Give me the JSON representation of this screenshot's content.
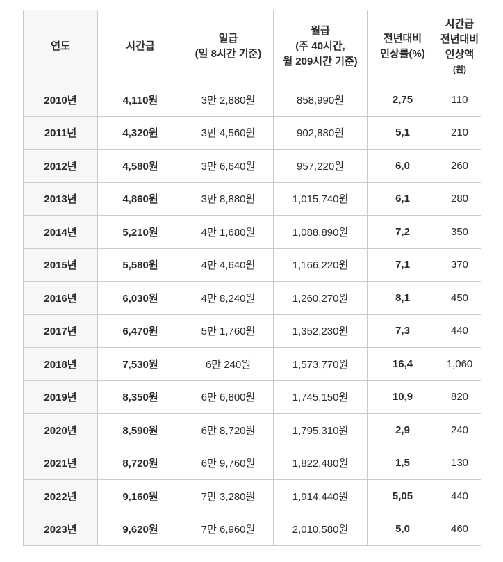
{
  "colors": {
    "page_background": "#ffffff",
    "table_border": "#cbcbcb",
    "first_column_background": "#f7f7f7",
    "bold_text": "#2b2b2b",
    "regular_text": "#555555"
  },
  "table": {
    "header_lines": [
      [
        "연도"
      ],
      [
        "시간급"
      ],
      [
        "일급",
        "(일 8시간 기준)"
      ],
      [
        "월급",
        "(주 40시간,",
        "월 209시간 기준)"
      ],
      [
        "전년대비",
        "인상률(%)"
      ],
      [
        "시간급",
        "전년대비",
        "인상액",
        "(원)"
      ]
    ]
  },
  "chart_data": {
    "type": "table",
    "columns": [
      "연도",
      "시간급",
      "일급 (일 8시간 기준)",
      "월급 (주 40시간, 월 209시간 기준)",
      "전년대비 인상률(%)",
      "시간급 전년대비 인상액 (원)"
    ],
    "rows": [
      [
        "2010년",
        "4,110원",
        "3만 2,880원",
        "858,990원",
        "2,75",
        "110"
      ],
      [
        "2011년",
        "4,320원",
        "3만 4,560원",
        "902,880원",
        "5,1",
        "210"
      ],
      [
        "2012년",
        "4,580원",
        "3만 6,640원",
        "957,220원",
        "6,0",
        "260"
      ],
      [
        "2013년",
        "4,860원",
        "3만 8,880원",
        "1,015,740원",
        "6,1",
        "280"
      ],
      [
        "2014년",
        "5,210원",
        "4만 1,680원",
        "1,088,890원",
        "7,2",
        "350"
      ],
      [
        "2015년",
        "5,580원",
        "4만 4,640원",
        "1,166,220원",
        "7,1",
        "370"
      ],
      [
        "2016년",
        "6,030원",
        "4만 8,240원",
        "1,260,270원",
        "8,1",
        "450"
      ],
      [
        "2017년",
        "6,470원",
        "5만 1,760원",
        "1,352,230원",
        "7,3",
        "440"
      ],
      [
        "2018년",
        "7,530원",
        "6만 240원",
        "1,573,770원",
        "16,4",
        "1,060"
      ],
      [
        "2019년",
        "8,350원",
        "6만 6,800원",
        "1,745,150원",
        "10,9",
        "820"
      ],
      [
        "2020년",
        "8,590원",
        "6만 8,720원",
        "1,795,310원",
        "2,9",
        "240"
      ],
      [
        "2021년",
        "8,720원",
        "6만 9,760원",
        "1,822,480원",
        "1,5",
        "130"
      ],
      [
        "2022년",
        "9,160원",
        "7만 3,280원",
        "1,914,440원",
        "5,05",
        "440"
      ],
      [
        "2023년",
        "9,620원",
        "7만 6,960원",
        "2,010,580원",
        "5,0",
        "460"
      ]
    ]
  }
}
